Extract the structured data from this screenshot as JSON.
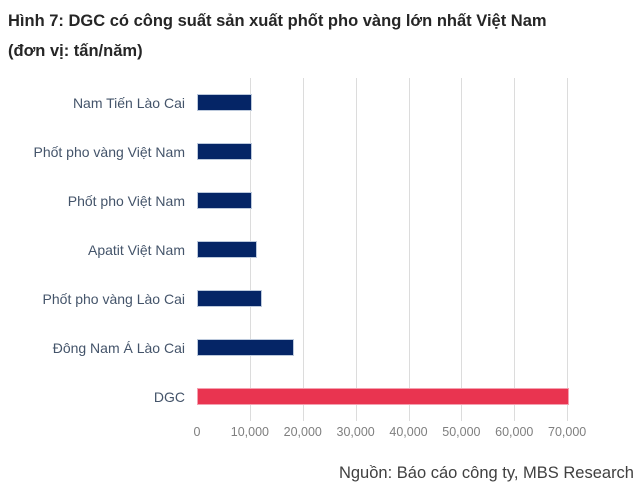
{
  "title": {
    "line1": "Hình 7: DGC có công suất sản xuất phốt pho vàng lớn nhất Việt Nam",
    "line2": "(đơn vị: tấn/năm)"
  },
  "source": "Nguồn: Báo cáo công ty, MBS Research",
  "colors": {
    "bar_navy": "#052566",
    "bar_red": "#e93450",
    "label_text": "#44546a",
    "axis_text": "#7f7f7f",
    "gridline": "#dcdcdc",
    "title_text": "#262626",
    "source_text": "#404040"
  },
  "chart_data": {
    "type": "bar",
    "orientation": "horizontal",
    "title": "Hình 7: DGC có công suất sản xuất phốt pho vàng lớn nhất Việt Nam (đơn vị: tấn/năm)",
    "unit": "tấn/năm",
    "categories": [
      "Nam Tiến Lào Cai",
      "Phốt pho vàng Việt Nam",
      "Phốt pho Việt Nam",
      "Apatit Việt Nam",
      "Phốt pho vàng Lào Cai",
      "Đông Nam Á Lào Cai",
      "DGC"
    ],
    "values": [
      10000,
      10000,
      10000,
      11000,
      12000,
      18000,
      70000
    ],
    "highlight_category": "DGC",
    "x_tick_labels": [
      "0",
      "10,000",
      "20,000",
      "30,000",
      "40,000",
      "50,000",
      "60,000",
      "70,000"
    ],
    "x_tick_values": [
      0,
      10000,
      20000,
      30000,
      40000,
      50000,
      60000,
      70000
    ],
    "xlim": [
      0,
      80000
    ],
    "grid": "vertical-only",
    "legend": "none"
  }
}
